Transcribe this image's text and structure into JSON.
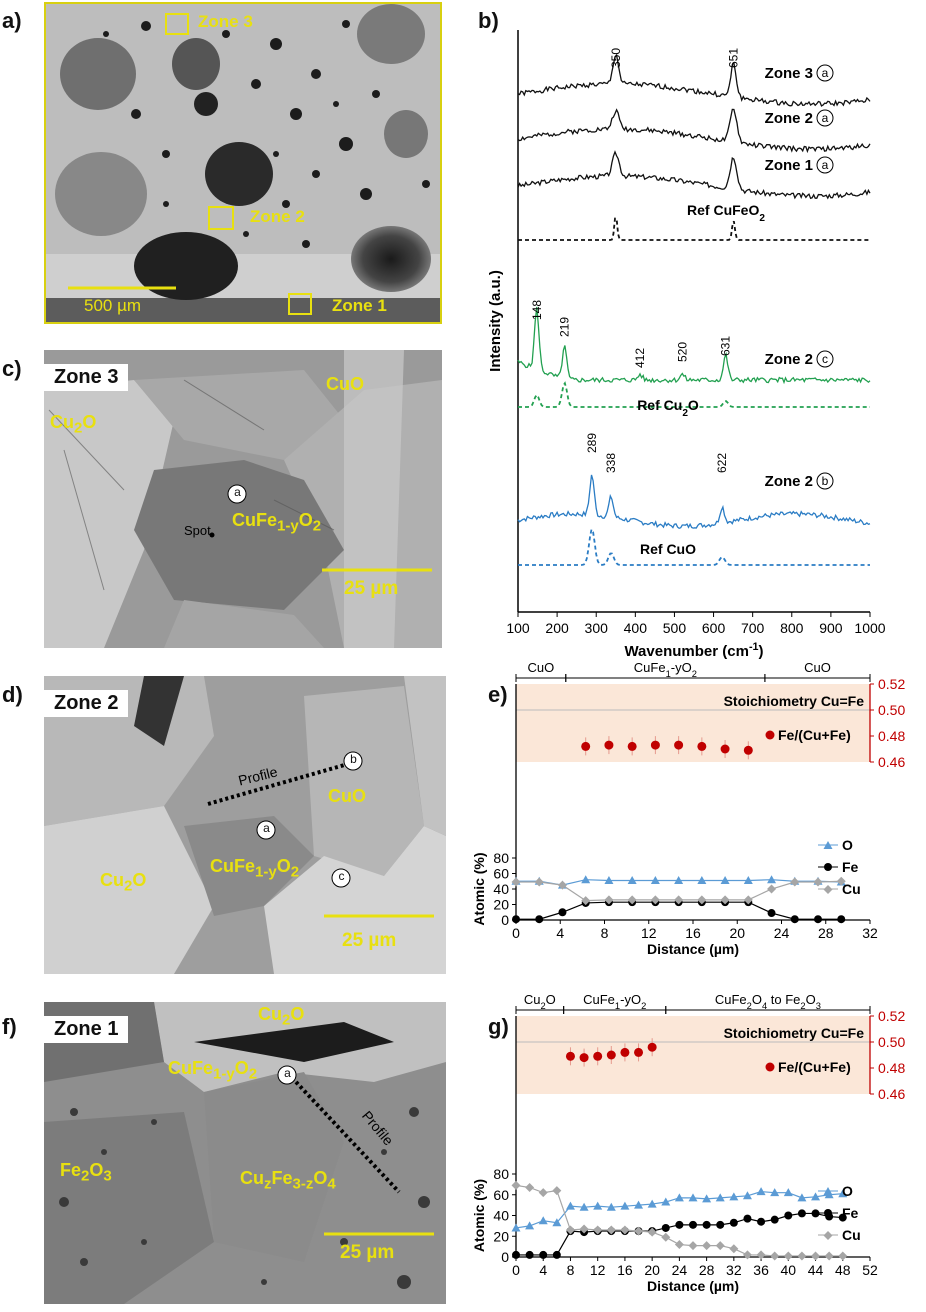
{
  "panel_letters": {
    "a": "a)",
    "b": "b)",
    "c": "c)",
    "d": "d)",
    "e": "e)",
    "f": "f)",
    "g": "g)"
  },
  "panel_a": {
    "zones": [
      "Zone 3",
      "Zone 2",
      "Zone 1"
    ],
    "scale": "500 µm"
  },
  "panel_c": {
    "title": "Zone 3",
    "labels": [
      "Cu2O",
      "CuO",
      "CuFe1-yO2",
      "Spot"
    ],
    "marker": "a",
    "scale": "25 µm"
  },
  "panel_d": {
    "title": "Zone 2",
    "labels": [
      "CuO",
      "CuFe1-yO2",
      "Cu2O",
      "Profile"
    ],
    "markers": [
      "a",
      "b",
      "c"
    ],
    "scale": "25 µm"
  },
  "panel_f": {
    "title": "Zone 1",
    "labels": [
      "Cu2O",
      "CuFe1-yO2",
      "Fe2O3",
      "Cu2Fe3-zO4",
      "Profile"
    ],
    "marker": "a",
    "scale": "25 µm"
  },
  "chart_data": [
    {
      "type": "line",
      "panel": "b",
      "ylabel": "Intensity (a.u.)",
      "xlabel": "Wavenumber (cm-1)",
      "xlim": [
        100,
        1000
      ],
      "x_ticks": [
        100,
        200,
        300,
        400,
        500,
        600,
        700,
        800,
        900,
        1000
      ],
      "series": [
        {
          "name": "Zone 3 (a)",
          "peaks": [
            350,
            651
          ],
          "color": "#111111",
          "dash": false
        },
        {
          "name": "Zone 2 (a)",
          "peaks": [
            350,
            651
          ],
          "color": "#111111",
          "dash": false
        },
        {
          "name": "Zone 1 (a)",
          "peaks": [
            350,
            651
          ],
          "color": "#111111",
          "dash": false
        },
        {
          "name": "Ref CuFeO2",
          "peaks": [
            350,
            651
          ],
          "color": "#111111",
          "dash": true
        },
        {
          "name": "Zone 2 (c)",
          "peaks": [
            148,
            219,
            412,
            520,
            631
          ],
          "color": "#22a050",
          "dash": false
        },
        {
          "name": "Ref Cu2O",
          "peaks": [
            148,
            219,
            631
          ],
          "color": "#22a050",
          "dash": true
        },
        {
          "name": "Zone 2 (b)",
          "peaks": [
            289,
            338,
            622
          ],
          "color": "#2a7cc4",
          "dash": false
        },
        {
          "name": "Ref CuO",
          "peaks": [
            289,
            338,
            622
          ],
          "color": "#2a7cc4",
          "dash": true
        }
      ],
      "peak_labels": [
        "350",
        "651",
        "148",
        "219",
        "412",
        "520",
        "631",
        "289",
        "338",
        "622"
      ]
    },
    {
      "type": "line",
      "panel": "e",
      "xlabel": "Distance (µm)",
      "ylabel": "Atomic (%)",
      "xlim": [
        0,
        32
      ],
      "ylim": [
        0,
        80
      ],
      "x_ticks": [
        0,
        4,
        8,
        12,
        16,
        20,
        24,
        28,
        32
      ],
      "y_ticks": [
        0,
        20,
        40,
        60,
        80
      ],
      "y2lim": [
        0.46,
        0.52
      ],
      "y2_ticks": [
        "0.46",
        "0.48",
        "0.50",
        "0.52"
      ],
      "phases": [
        {
          "label": "CuO",
          "from": 0,
          "to": 4.5
        },
        {
          "label": "CuFe1-yO2",
          "from": 4.5,
          "to": 22.5
        },
        {
          "label": "CuO",
          "from": 22.5,
          "to": 32
        }
      ],
      "stoich_label": "Stoichiometry Cu=Fe",
      "x": [
        0,
        2.1,
        4.2,
        6.3,
        8.4,
        10.5,
        12.6,
        14.7,
        16.8,
        18.9,
        21.0,
        23.1,
        25.2,
        27.3,
        29.4
      ],
      "series": [
        {
          "name": "O",
          "color": "#5b9bd5",
          "marker": "triangle",
          "values": [
            50,
            50,
            45,
            52,
            51,
            51,
            51,
            51,
            51,
            51,
            51,
            52,
            50,
            50,
            49
          ]
        },
        {
          "name": "Fe",
          "color": "#000000",
          "marker": "circle",
          "values": [
            1,
            1,
            10,
            22,
            23,
            23,
            23,
            23,
            23,
            23,
            23,
            9,
            1,
            1,
            1
          ]
        },
        {
          "name": "Cu",
          "color": "#a6a6a6",
          "marker": "diamond",
          "values": [
            49,
            49,
            45,
            25,
            26,
            26,
            26,
            26,
            26,
            26,
            26,
            40,
            49,
            49,
            50
          ]
        }
      ],
      "ratio_series": {
        "name": "Fe/(Cu+Fe)",
        "color": "#c00000",
        "x": [
          6.3,
          8.4,
          10.5,
          12.6,
          14.7,
          16.8,
          18.9,
          21.0
        ],
        "values": [
          0.472,
          0.473,
          0.472,
          0.473,
          0.473,
          0.472,
          0.47,
          0.469
        ]
      }
    },
    {
      "type": "line",
      "panel": "g",
      "xlabel": "Distance (µm)",
      "ylabel": "Atomic (%)",
      "xlim": [
        0,
        52
      ],
      "ylim": [
        0,
        80
      ],
      "x_ticks": [
        0,
        4,
        8,
        12,
        16,
        20,
        24,
        28,
        32,
        36,
        40,
        44,
        48,
        52
      ],
      "y_ticks": [
        0,
        20,
        40,
        60,
        80
      ],
      "y2lim": [
        0.46,
        0.52
      ],
      "y2_ticks": [
        "0.46",
        "0.48",
        "0.50",
        "0.52"
      ],
      "phases": [
        {
          "label": "Cu2O",
          "from": 0,
          "to": 7
        },
        {
          "label": "CuFe1-yO2",
          "from": 7,
          "to": 22
        },
        {
          "label": "CuFe2O4 to Fe2O3",
          "from": 22,
          "to": 52
        }
      ],
      "stoich_label": "Stoichiometry Cu=Fe",
      "x": [
        0,
        2,
        4,
        6,
        8,
        10,
        12,
        14,
        16,
        18,
        20,
        22,
        24,
        26,
        28,
        30,
        32,
        34,
        36,
        38,
        40,
        42,
        44,
        46,
        48
      ],
      "series": [
        {
          "name": "O",
          "color": "#5b9bd5",
          "marker": "triangle",
          "values": [
            28,
            30,
            35,
            33,
            49,
            48,
            49,
            48,
            49,
            50,
            51,
            53,
            57,
            57,
            56,
            57,
            58,
            59,
            63,
            62,
            62,
            57,
            58,
            60,
            61
          ]
        },
        {
          "name": "Fe",
          "color": "#000000",
          "marker": "circle",
          "values": [
            2,
            2,
            2,
            2,
            25,
            24,
            25,
            25,
            25,
            25,
            25,
            28,
            31,
            31,
            31,
            31,
            33,
            37,
            34,
            36,
            40,
            42,
            42,
            39,
            38
          ]
        },
        {
          "name": "Cu",
          "color": "#a6a6a6",
          "marker": "diamond",
          "values": [
            69,
            67,
            62,
            64,
            26,
            27,
            26,
            26,
            26,
            25,
            24,
            19,
            12,
            11,
            11,
            11,
            8,
            2,
            2,
            1,
            1,
            1,
            1,
            1,
            1
          ]
        }
      ],
      "ratio_series": {
        "name": "Fe/(Cu+Fe)",
        "color": "#c00000",
        "x": [
          8,
          10,
          12,
          14,
          16,
          18,
          20
        ],
        "values": [
          0.489,
          0.488,
          0.489,
          0.49,
          0.492,
          0.492,
          0.496
        ]
      }
    }
  ]
}
